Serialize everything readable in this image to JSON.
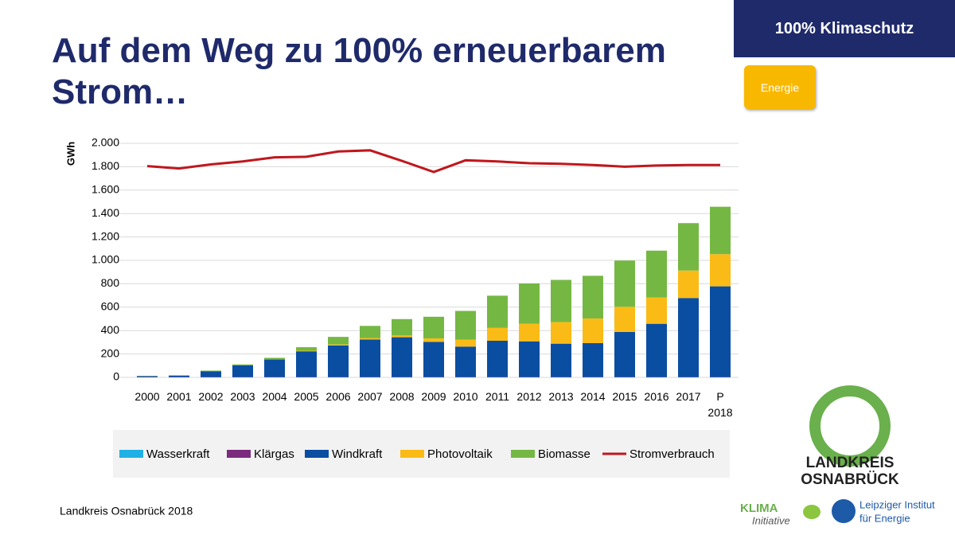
{
  "header": {
    "badge": "100% Klimaschutz",
    "tag": "Energie",
    "title": "Auf dem Weg zu 100% erneuerbarem Strom…"
  },
  "footer": {
    "source": "Landkreis Osnabrück 2018",
    "logo_line1": "LANDKREIS",
    "logo_line2": "OSNABRÜCK",
    "klima": "KLIMA",
    "initiative": "Initiative",
    "institute_line1": "Leipziger Institut",
    "institute_line2": "für Energie"
  },
  "chart_data": {
    "type": "bar",
    "stacked": true,
    "y_label": "GWh",
    "grid": true,
    "categories": [
      "2000",
      "2001",
      "2002",
      "2003",
      "2004",
      "2005",
      "2006",
      "2007",
      "2008",
      "2009",
      "2010",
      "2011",
      "2012",
      "2013",
      "2014",
      "2015",
      "2016",
      "2017",
      "P 2018"
    ],
    "ylim": [
      0,
      2000
    ],
    "yticks": [
      0,
      {
        "value": 200,
        "label": "200"
      },
      {
        "value": 400,
        "label": "400"
      },
      {
        "value": 600,
        "label": "600"
      },
      {
        "value": 800,
        "label": "800"
      },
      {
        "value": 1000,
        "label": "1.000"
      },
      {
        "value": 1200,
        "label": "1.200"
      },
      {
        "value": 1400,
        "label": "1.400"
      },
      {
        "value": 1600,
        "label": "1.600"
      },
      {
        "value": 1800,
        "label": "1.800"
      },
      {
        "value": 2000,
        "label": "2.000"
      }
    ],
    "series": [
      {
        "name": "Wasserkraft",
        "color": "#1fb1e6",
        "values": [
          1,
          1,
          1,
          1,
          1,
          1,
          1,
          1,
          1,
          1,
          1,
          1,
          1,
          1,
          1,
          1,
          1,
          1,
          1
        ]
      },
      {
        "name": "Klärgas",
        "color": "#7b2a7e",
        "values": [
          2,
          2,
          2,
          2,
          2,
          2,
          2,
          2,
          2,
          2,
          2,
          2,
          2,
          2,
          2,
          2,
          2,
          2,
          2
        ]
      },
      {
        "name": "Windkraft",
        "color": "#0a4ea2",
        "values": [
          8,
          12,
          50,
          100,
          150,
          220,
          270,
          320,
          340,
          300,
          260,
          310,
          305,
          285,
          290,
          385,
          455,
          675,
          775
        ]
      },
      {
        "name": "Photovoltaik",
        "color": "#fbbb16",
        "values": [
          0,
          0,
          0,
          0,
          2,
          5,
          8,
          12,
          15,
          30,
          60,
          110,
          150,
          185,
          210,
          215,
          225,
          235,
          275
        ]
      },
      {
        "name": "Biomasse",
        "color": "#74b843",
        "values": [
          2,
          3,
          5,
          8,
          12,
          30,
          65,
          105,
          140,
          185,
          245,
          275,
          345,
          360,
          365,
          395,
          400,
          405,
          405
        ]
      },
      {
        "name": "Stromverbrauch",
        "color": "#c0171d",
        "type": "line",
        "values": [
          1805,
          1785,
          1820,
          1845,
          1880,
          1885,
          1930,
          1940,
          1850,
          1755,
          1855,
          1845,
          1830,
          1825,
          1815,
          1800,
          1810,
          1815,
          1815
        ]
      }
    ]
  }
}
